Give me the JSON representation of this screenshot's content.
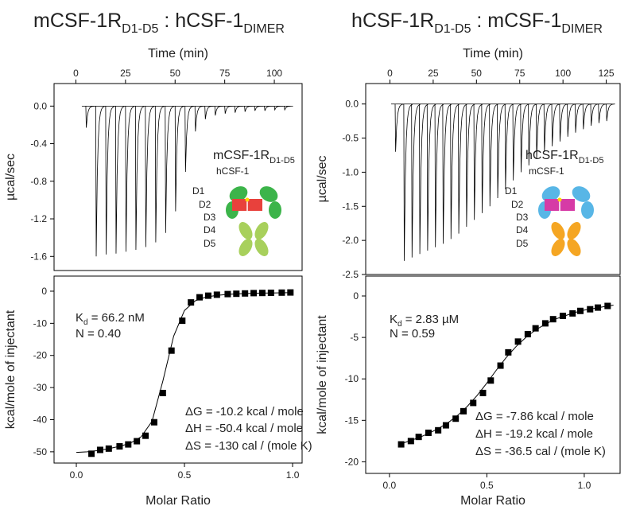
{
  "panels": [
    {
      "title": {
        "a": "mCSF-1R",
        "a_sub": "D1-D5",
        "b": " : hCSF-1",
        "b_sub": "DIMER"
      },
      "receptor": {
        "text": "mCSF-1R",
        "sub": "D1-D5",
        "color": "#3cb44a"
      },
      "ligand": {
        "text": "hCSF-1",
        "color": "#e8413c"
      },
      "lower_color": "#a8d05c",
      "domains": [
        "D1",
        "D2",
        "D3",
        "D4",
        "D5"
      ]
    },
    {
      "title": {
        "a": "hCSF-1R",
        "a_sub": "D1-D5",
        "b": " : mCSF-1",
        "b_sub": "DIMER"
      },
      "receptor": {
        "text": "hCSF-1R",
        "sub": "D1-D5",
        "color": "#58b6e6"
      },
      "ligand": {
        "text": "mCSF-1",
        "color": "#d63ba6"
      },
      "lower_color": "#f5a623",
      "domains": [
        "D1",
        "D2",
        "D3",
        "D4",
        "D5"
      ]
    }
  ],
  "chart_data": [
    {
      "type": "thermogram",
      "x_label": "Time (min)",
      "y_label": "µcal/sec",
      "color": "#000000",
      "x": [
        5,
        10,
        15,
        20,
        25,
        30,
        35,
        40,
        45,
        50,
        55,
        60,
        65,
        70,
        75,
        80,
        85,
        90,
        95,
        100,
        105
      ],
      "values": [
        -0.23,
        -1.6,
        -1.58,
        -1.57,
        -1.55,
        -1.53,
        -1.5,
        -1.45,
        -1.35,
        -1.12,
        -0.7,
        -0.27,
        -0.14,
        -0.1,
        -0.08,
        -0.07,
        -0.06,
        -0.05,
        -0.05,
        -0.04,
        -0.04
      ],
      "xlim": [
        -11,
        114
      ],
      "ylim": [
        -1.75,
        0.24
      ],
      "xticks": [
        0,
        25,
        50,
        75,
        100
      ],
      "yticks": [
        {
          "value": 0,
          "label": "0.0"
        },
        -0.4,
        -0.8,
        -1.2,
        -1.6
      ]
    },
    {
      "type": "scatter",
      "x_label": "Molar Ratio",
      "y_label": "kcal/mole of injectant",
      "color": "#000000",
      "x": [
        0.07,
        0.11,
        0.15,
        0.2,
        0.24,
        0.28,
        0.32,
        0.36,
        0.4,
        0.44,
        0.49,
        0.53,
        0.57,
        0.61,
        0.65,
        0.7,
        0.74,
        0.78,
        0.82,
        0.86,
        0.9,
        0.95,
        0.99
      ],
      "values": [
        -50.6,
        -49.4,
        -49,
        -48.3,
        -47.7,
        -46.7,
        -45,
        -40.8,
        -31.7,
        -18.5,
        -9.2,
        -3.5,
        -1.9,
        -1.4,
        -1.1,
        -0.9,
        -0.8,
        -0.7,
        -0.6,
        -0.55,
        -0.5,
        -0.45,
        -0.4
      ],
      "fit_x": [
        0,
        0.05,
        0.1,
        0.15,
        0.2,
        0.25,
        0.3,
        0.35,
        0.4,
        0.45,
        0.5,
        0.55,
        0.6,
        0.65,
        0.7,
        0.75,
        0.8,
        0.85,
        0.9,
        0.95,
        1.0
      ],
      "fit_values": [
        -50.2,
        -50,
        -49.6,
        -49,
        -48.3,
        -47.3,
        -45.3,
        -40.5,
        -28,
        -14,
        -6,
        -3,
        -1.8,
        -1.3,
        -1,
        -0.8,
        -0.7,
        -0.6,
        -0.55,
        -0.5,
        -0.45
      ],
      "xlim": [
        -0.103,
        1.044
      ],
      "ylim": [
        -53.5,
        4.7
      ],
      "xticks": [
        {
          "value": 0,
          "label": "0.0"
        },
        0.5,
        {
          "value": 1,
          "label": "1.0"
        }
      ],
      "yticks": [
        0,
        -10,
        -20,
        -30,
        -40,
        -50
      ],
      "annotations": [
        {
          "text": "K",
          "sub": "d",
          "rest": " = 66.2 nM"
        },
        "N = 0.40",
        "ΔG = -10.2 kcal / mole",
        "ΔH = -50.4 kcal / mole",
        "ΔS = -130 cal / (mole K)"
      ]
    },
    {
      "type": "thermogram",
      "x_label": "Time (min)",
      "y_label": "µcal/sec",
      "color": "#000000",
      "x": [
        3,
        8,
        12.5,
        17,
        21.5,
        26,
        30.5,
        35,
        39.5,
        44,
        48.5,
        53,
        57.5,
        62,
        66.5,
        71,
        75.5,
        80,
        84.5,
        89,
        93.5,
        98,
        102.5,
        107,
        111.5,
        116,
        120.5,
        125
      ],
      "values": [
        -0.7,
        -2.3,
        -2.25,
        -2.2,
        -2.15,
        -2.1,
        -2.05,
        -1.98,
        -1.9,
        -1.8,
        -1.7,
        -1.6,
        -1.5,
        -1.38,
        -1.25,
        -1.12,
        -1.0,
        -0.9,
        -0.8,
        -0.7,
        -0.62,
        -0.55,
        -0.48,
        -0.42,
        -0.37,
        -0.32,
        -0.28,
        -0.25
      ],
      "xlim": [
        -14,
        133
      ],
      "ylim": [
        -2.5,
        0.3
      ],
      "xticks": [
        0,
        25,
        50,
        75,
        100,
        125
      ],
      "yticks": [
        {
          "value": 0,
          "label": "0.0"
        },
        -0.5,
        {
          "value": -1,
          "label": "-1.0"
        },
        -1.5,
        {
          "value": -2,
          "label": "-2.0"
        },
        -2.5
      ]
    },
    {
      "type": "scatter",
      "x_label": "Molar Ratio",
      "y_label": "kcal/mole of injectant",
      "color": "#000000",
      "x": [
        0.06,
        0.11,
        0.15,
        0.2,
        0.25,
        0.29,
        0.34,
        0.38,
        0.43,
        0.48,
        0.52,
        0.57,
        0.61,
        0.66,
        0.71,
        0.75,
        0.8,
        0.84,
        0.89,
        0.94,
        0.98,
        1.03,
        1.07,
        1.12
      ],
      "values": [
        -17.9,
        -17.5,
        -17,
        -16.5,
        -16.2,
        -15.6,
        -14.8,
        -13.9,
        -12.9,
        -11.7,
        -10.2,
        -8.4,
        -6.8,
        -5.5,
        -4.6,
        -3.9,
        -3.3,
        -2.8,
        -2.4,
        -2.1,
        -1.8,
        -1.6,
        -1.4,
        -1.2
      ],
      "fit_x": [
        0.05,
        0.1,
        0.15,
        0.2,
        0.25,
        0.3,
        0.35,
        0.4,
        0.45,
        0.5,
        0.55,
        0.6,
        0.65,
        0.7,
        0.75,
        0.8,
        0.85,
        0.9,
        0.95,
        1.0,
        1.05,
        1.1,
        1.15
      ],
      "fit_values": [
        -17.9,
        -17.5,
        -17.1,
        -16.6,
        -16.0,
        -15.3,
        -14.4,
        -13.3,
        -12.0,
        -10.5,
        -8.9,
        -7.4,
        -6.1,
        -5.0,
        -4.1,
        -3.4,
        -2.8,
        -2.4,
        -2.0,
        -1.7,
        -1.5,
        -1.3,
        -1.1
      ],
      "xlim": [
        -0.122,
        1.184
      ],
      "ylim": [
        -21.4,
        2.4
      ],
      "xticks": [
        {
          "value": 0,
          "label": "0.0"
        },
        0.5,
        {
          "value": 1,
          "label": "1.0"
        }
      ],
      "yticks": [
        0,
        -5,
        -10,
        -15,
        -20
      ],
      "annotations": [
        {
          "text": "K",
          "sub": "d",
          "rest": " = 2.83 µM"
        },
        "N = 0.59",
        "ΔG = -7.86 kcal / mole",
        "ΔH = -19.2 kcal / mole",
        "ΔS = -36.5 cal / (mole K)"
      ]
    }
  ]
}
